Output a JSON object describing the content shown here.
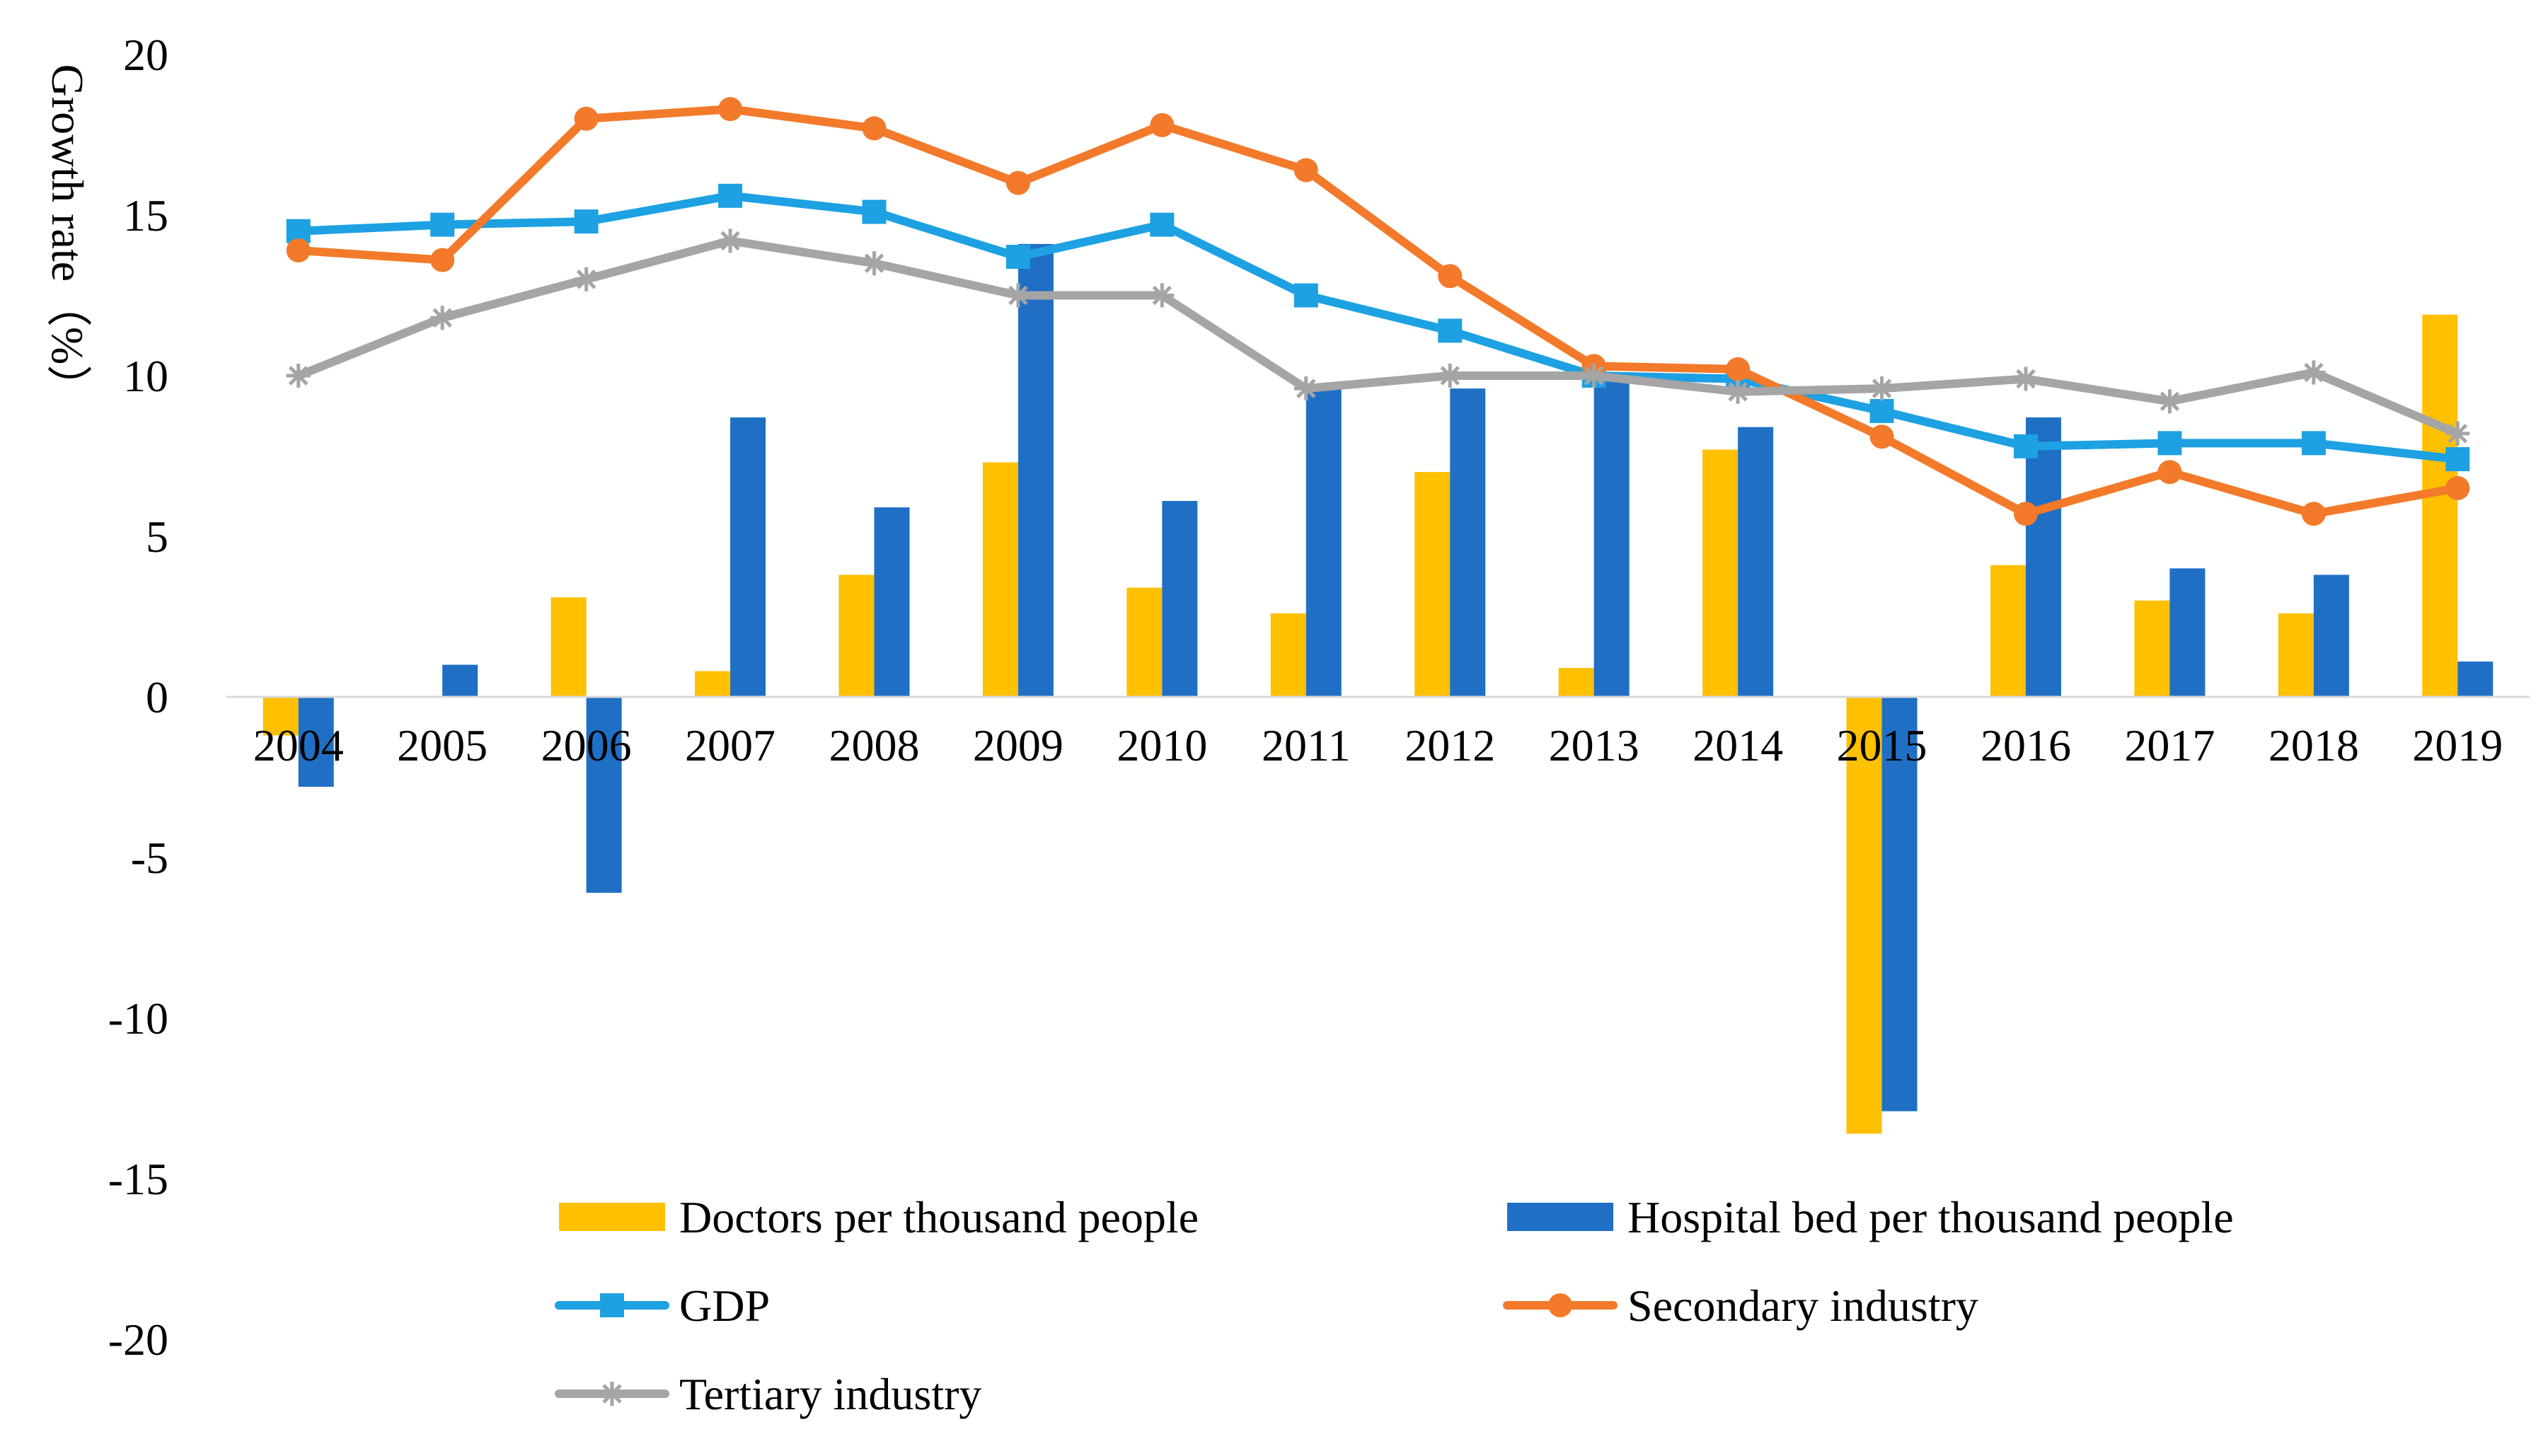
{
  "chart_data": {
    "type": "bar",
    "title": "",
    "xlabel": "",
    "ylabel": "Growth rate（%）",
    "ylim": [
      -20,
      20
    ],
    "yticks": [
      20,
      15,
      10,
      5,
      0,
      -5,
      -10,
      -15,
      -20
    ],
    "grid": false,
    "legend_position": "bottom",
    "categories": [
      "2004",
      "2005",
      "2006",
      "2007",
      "2008",
      "2009",
      "2010",
      "2011",
      "2012",
      "2013",
      "2014",
      "2015",
      "2016",
      "2017",
      "2018",
      "2019"
    ],
    "bar_series": [
      {
        "name": "Doctors per thousand people",
        "color": "#FFC000",
        "values": [
          -1.2,
          0,
          3.1,
          0.8,
          3.8,
          7.3,
          3.4,
          2.6,
          7.0,
          0.9,
          7.7,
          -13.6,
          4.1,
          3.0,
          2.6,
          11.9
        ]
      },
      {
        "name": "Hospital bed per thousand people",
        "color": "#1F6FC5",
        "values": [
          -2.8,
          1.0,
          -6.1,
          8.7,
          5.9,
          14.1,
          6.1,
          9.6,
          9.6,
          10.0,
          8.4,
          -12.9,
          8.7,
          4.0,
          3.8,
          1.1
        ]
      }
    ],
    "line_series": [
      {
        "name": "GDP",
        "color": "#1DA1E2",
        "marker": "square",
        "values": [
          14.5,
          14.7,
          14.8,
          15.6,
          15.1,
          13.7,
          14.7,
          12.5,
          11.4,
          10.0,
          9.9,
          8.9,
          7.8,
          7.9,
          7.9,
          7.4
        ]
      },
      {
        "name": "Secondary industry",
        "color": "#F27A2A",
        "marker": "circle",
        "values": [
          13.9,
          13.6,
          18.0,
          18.3,
          17.7,
          16.0,
          17.8,
          16.4,
          13.1,
          10.3,
          10.2,
          8.1,
          5.7,
          7.0,
          5.7,
          6.5
        ]
      },
      {
        "name": "Tertiary industry",
        "color": "#A5A5A5",
        "marker": "asterisk",
        "values": [
          10.0,
          11.8,
          13.0,
          14.2,
          13.5,
          12.5,
          12.5,
          9.6,
          10.0,
          10.0,
          9.5,
          9.6,
          9.9,
          9.2,
          10.1,
          8.2
        ]
      }
    ],
    "legend": [
      {
        "label": "Doctors per thousand people",
        "kind": "bar",
        "color": "#FFC000"
      },
      {
        "label": "Hospital bed per thousand people",
        "kind": "bar",
        "color": "#1F6FC5"
      },
      {
        "label": "GDP",
        "kind": "line",
        "color": "#1DA1E2",
        "marker": "square"
      },
      {
        "label": "Secondary industry",
        "kind": "line",
        "color": "#F27A2A",
        "marker": "circle"
      },
      {
        "label": "Tertiary industry",
        "kind": "line",
        "color": "#A5A5A5",
        "marker": "asterisk"
      }
    ]
  }
}
